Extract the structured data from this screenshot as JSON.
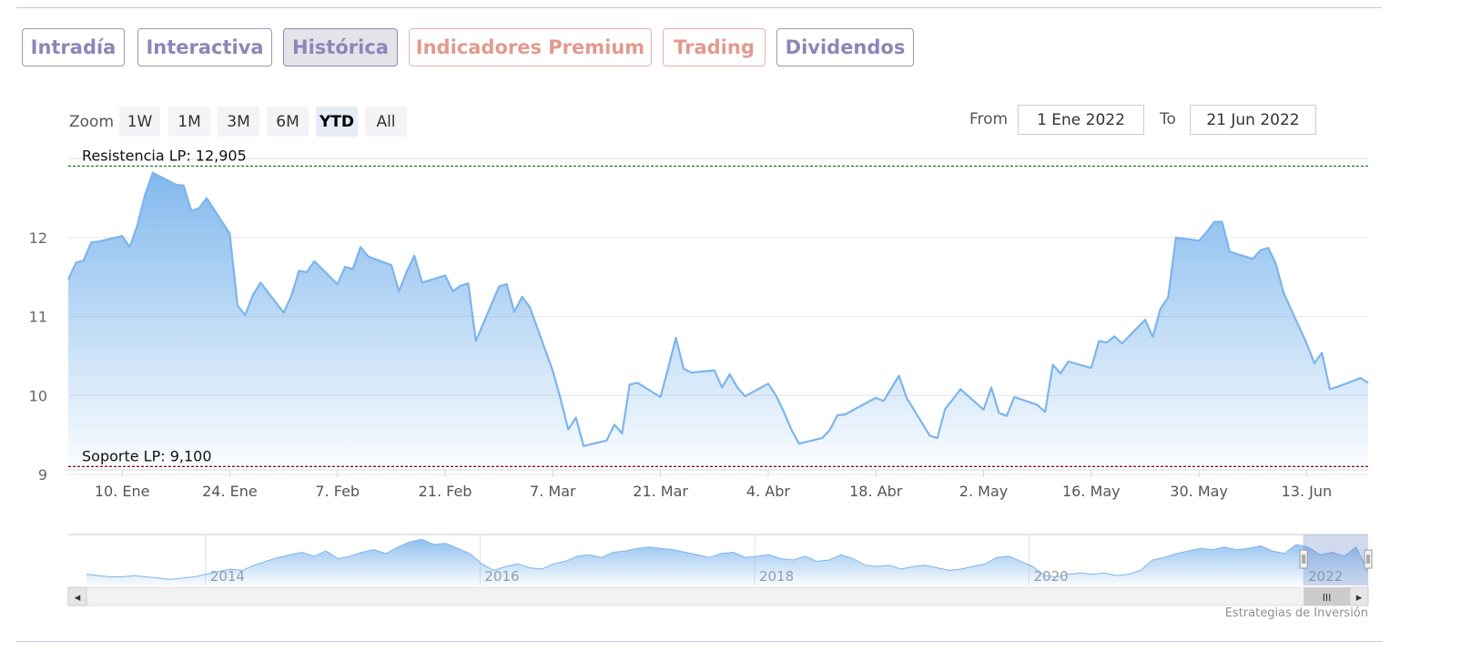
{
  "tabs": [
    {
      "label": "Intradía",
      "style": "normal"
    },
    {
      "label": "Interactiva",
      "style": "normal"
    },
    {
      "label": "Histórica",
      "style": "active"
    },
    {
      "label": "Indicadores Premium",
      "style": "premium"
    },
    {
      "label": "Trading",
      "style": "premium"
    },
    {
      "label": "Dividendos",
      "style": "normal"
    }
  ],
  "toolbar": {
    "zoom_label": "Zoom",
    "zoom_buttons": [
      "1W",
      "1M",
      "3M",
      "6M",
      "YTD",
      "All"
    ],
    "zoom_selected": "YTD",
    "from_label": "From",
    "from_value": "1 Ene 2022",
    "to_label": "To",
    "to_value": "21 Jun 2022"
  },
  "colors": {
    "series": "#7cb5ec",
    "resistance": "#2f7d2f",
    "support": "#8b1a1a",
    "tab_text": "#8c86b8",
    "tab_premium_text": "#e29a8e"
  },
  "chart_data": {
    "type": "area",
    "x_range": [
      "2022-01-03",
      "2022-06-21"
    ],
    "ylim": [
      9,
      13
    ],
    "y_ticks": [
      9,
      10,
      11,
      12
    ],
    "x_tick_labels": [
      "10. Ene",
      "24. Ene",
      "7. Feb",
      "21. Feb",
      "7. Mar",
      "21. Mar",
      "4. Abr",
      "18. Abr",
      "2. May",
      "16. May",
      "30. May",
      "13. Jun"
    ],
    "x_tick_dates": [
      "2022-01-10",
      "2022-01-24",
      "2022-02-07",
      "2022-02-21",
      "2022-03-07",
      "2022-03-21",
      "2022-04-04",
      "2022-04-18",
      "2022-05-02",
      "2022-05-16",
      "2022-05-30",
      "2022-06-13"
    ],
    "grid": true,
    "legend": "none",
    "plot_lines": [
      {
        "label": "Resistencia LP: 12,905",
        "value": 12.905
      },
      {
        "label": "Soporte LP: 9,100",
        "value": 9.1
      }
    ],
    "series": [
      {
        "x": [
          "2022-01-03",
          "2022-01-04",
          "2022-01-05",
          "2022-01-06",
          "2022-01-07",
          "2022-01-10",
          "2022-01-11",
          "2022-01-12",
          "2022-01-13",
          "2022-01-14",
          "2022-01-17",
          "2022-01-18",
          "2022-01-19",
          "2022-01-20",
          "2022-01-21",
          "2022-01-24",
          "2022-01-25",
          "2022-01-26",
          "2022-01-27",
          "2022-01-28",
          "2022-01-31",
          "2022-02-01",
          "2022-02-02",
          "2022-02-03",
          "2022-02-04",
          "2022-02-07",
          "2022-02-08",
          "2022-02-09",
          "2022-02-10",
          "2022-02-11",
          "2022-02-14",
          "2022-02-15",
          "2022-02-16",
          "2022-02-17",
          "2022-02-18",
          "2022-02-21",
          "2022-02-22",
          "2022-02-23",
          "2022-02-24",
          "2022-02-25",
          "2022-02-28",
          "2022-03-01",
          "2022-03-02",
          "2022-03-03",
          "2022-03-04",
          "2022-03-07",
          "2022-03-08",
          "2022-03-09",
          "2022-03-10",
          "2022-03-11",
          "2022-03-14",
          "2022-03-15",
          "2022-03-16",
          "2022-03-17",
          "2022-03-18",
          "2022-03-21",
          "2022-03-22",
          "2022-03-23",
          "2022-03-24",
          "2022-03-25",
          "2022-03-28",
          "2022-03-29",
          "2022-03-30",
          "2022-03-31",
          "2022-04-01",
          "2022-04-04",
          "2022-04-05",
          "2022-04-06",
          "2022-04-07",
          "2022-04-08",
          "2022-04-11",
          "2022-04-12",
          "2022-04-13",
          "2022-04-14",
          "2022-04-18",
          "2022-04-19",
          "2022-04-20",
          "2022-04-21",
          "2022-04-22",
          "2022-04-25",
          "2022-04-26",
          "2022-04-27",
          "2022-04-28",
          "2022-04-29",
          "2022-05-02",
          "2022-05-03",
          "2022-05-04",
          "2022-05-05",
          "2022-05-06",
          "2022-05-09",
          "2022-05-10",
          "2022-05-11",
          "2022-05-12",
          "2022-05-13",
          "2022-05-16",
          "2022-05-17",
          "2022-05-18",
          "2022-05-19",
          "2022-05-20",
          "2022-05-23",
          "2022-05-24",
          "2022-05-25",
          "2022-05-26",
          "2022-05-27",
          "2022-05-30",
          "2022-05-31",
          "2022-06-01",
          "2022-06-02",
          "2022-06-03",
          "2022-06-06",
          "2022-06-07",
          "2022-06-08",
          "2022-06-09",
          "2022-06-10",
          "2022-06-13",
          "2022-06-14",
          "2022-06-15",
          "2022-06-16",
          "2022-06-17",
          "2022-06-20",
          "2022-06-21"
        ],
        "values": [
          11.47,
          11.68,
          11.71,
          11.94,
          11.95,
          12.02,
          11.88,
          12.16,
          12.55,
          12.82,
          12.67,
          12.66,
          12.34,
          12.37,
          12.5,
          12.05,
          11.14,
          11.02,
          11.27,
          11.43,
          11.05,
          11.26,
          11.58,
          11.56,
          11.7,
          11.41,
          11.63,
          11.6,
          11.88,
          11.76,
          11.65,
          11.32,
          11.57,
          11.77,
          11.43,
          11.52,
          11.32,
          11.39,
          11.42,
          10.69,
          11.38,
          11.41,
          11.06,
          11.25,
          11.12,
          10.31,
          9.96,
          9.57,
          9.72,
          9.36,
          9.43,
          9.63,
          9.52,
          10.14,
          10.16,
          9.98,
          10.35,
          10.73,
          10.34,
          10.29,
          10.32,
          10.1,
          10.27,
          10.1,
          9.99,
          10.15,
          10.0,
          9.8,
          9.57,
          9.39,
          9.46,
          9.56,
          9.75,
          9.76,
          9.97,
          9.93,
          10.09,
          10.25,
          9.97,
          9.49,
          9.46,
          9.83,
          9.95,
          10.08,
          9.82,
          10.1,
          9.78,
          9.74,
          9.98,
          9.88,
          9.79,
          10.39,
          10.28,
          10.43,
          10.35,
          10.69,
          10.67,
          10.75,
          10.66,
          10.96,
          10.74,
          11.1,
          11.24,
          12.0,
          11.96,
          12.07,
          12.2,
          12.2,
          11.82,
          11.73,
          11.84,
          11.87,
          11.67,
          11.3,
          10.66,
          10.41,
          10.54,
          10.08,
          10.11,
          10.22,
          10.16
        ]
      }
    ],
    "navigator": {
      "x_tick_labels": [
        "2014",
        "2016",
        "2018",
        "2020",
        "2022"
      ],
      "x_range": [
        2013,
        2022.47
      ],
      "selected_range": [
        2022.0,
        2022.47
      ],
      "values": [
        10.2,
        10.1,
        10.0,
        10.0,
        10.1,
        10.0,
        9.9,
        9.8,
        9.9,
        10.0,
        10.2,
        10.4,
        10.6,
        10.5,
        10.9,
        11.2,
        11.5,
        11.7,
        11.9,
        11.6,
        12.0,
        11.4,
        11.6,
        11.9,
        12.1,
        11.8,
        12.3,
        12.7,
        12.9,
        12.5,
        12.6,
        12.2,
        11.8,
        11.0,
        10.5,
        10.8,
        11.0,
        10.7,
        10.6,
        11.0,
        11.2,
        11.6,
        11.7,
        11.5,
        11.9,
        12.0,
        12.2,
        12.3,
        12.2,
        12.1,
        11.9,
        11.7,
        11.5,
        11.8,
        11.9,
        11.5,
        11.6,
        11.7,
        11.4,
        11.3,
        11.6,
        11.2,
        11.3,
        11.7,
        11.4,
        10.9,
        10.8,
        10.9,
        10.6,
        10.8,
        10.9,
        10.7,
        10.5,
        10.6,
        10.8,
        11.0,
        11.5,
        11.6,
        11.2,
        10.8,
        10.1,
        10.0,
        10.2,
        10.3,
        10.2,
        10.3,
        10.1,
        10.2,
        10.5,
        11.3,
        11.5,
        11.8,
        12.0,
        12.2,
        12.1,
        12.3,
        12.1,
        12.2,
        12.4,
        12.0,
        11.8,
        12.5,
        12.3,
        11.7,
        11.9,
        11.6,
        12.3,
        10.4
      ]
    }
  },
  "navigator_scroll": {
    "left_arrow": "◂",
    "right_arrow": "▸",
    "thumb_grip": "III"
  },
  "credits": "Estrategias de Inversión"
}
